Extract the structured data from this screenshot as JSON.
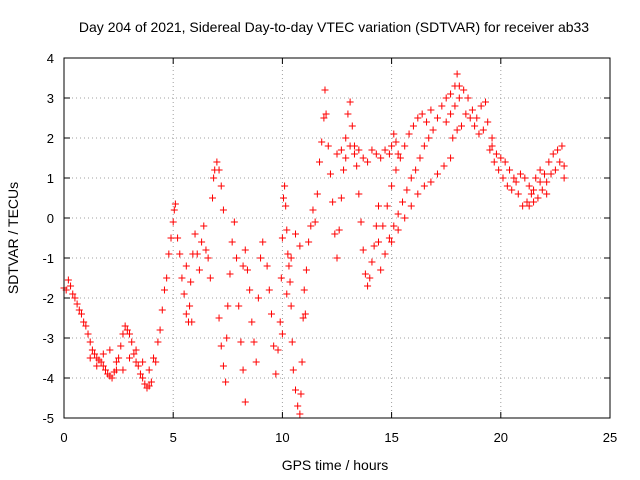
{
  "chart_data": {
    "type": "scatter",
    "title": "Day 204 of 2021, Sidereal Day-to-day VTEC variation (SDTVAR) for receiver ab33",
    "xlabel": "GPS time / hours",
    "ylabel": "SDTVAR / TECUs",
    "xlim": [
      0,
      25
    ],
    "ylim": [
      -5,
      4
    ],
    "xticks": [
      0,
      5,
      10,
      15,
      20,
      25
    ],
    "yticks": [
      -5,
      -4,
      -3,
      -2,
      -1,
      0,
      1,
      2,
      3,
      4
    ],
    "xtick_labels": [
      "0",
      "5",
      "10",
      "15",
      "20",
      "25"
    ],
    "ytick_labels": [
      "-5",
      "-4",
      "-3",
      "-2",
      "-1",
      "0",
      "1",
      "2",
      "3",
      "4"
    ],
    "grid": true,
    "marker": "plus",
    "color": "#ff0000",
    "series": [
      {
        "name": "SDTVAR",
        "points": [
          [
            0.0,
            -1.75
          ],
          [
            0.2,
            -1.55
          ],
          [
            0.4,
            -1.9
          ],
          [
            0.6,
            -2.15
          ],
          [
            0.8,
            -2.4
          ],
          [
            1.0,
            -2.7
          ],
          [
            1.2,
            -3.1
          ],
          [
            1.4,
            -3.4
          ],
          [
            1.6,
            -3.55
          ],
          [
            1.8,
            -3.7
          ],
          [
            2.0,
            -3.9
          ],
          [
            2.2,
            -4.0
          ],
          [
            2.4,
            -3.8
          ],
          [
            2.6,
            -3.2
          ],
          [
            2.8,
            -2.7
          ],
          [
            3.0,
            -2.9
          ],
          [
            3.2,
            -3.4
          ],
          [
            3.4,
            -3.7
          ],
          [
            3.6,
            -4.0
          ],
          [
            3.8,
            -4.25
          ],
          [
            4.0,
            -4.1
          ],
          [
            4.2,
            -3.6
          ],
          [
            4.4,
            -2.8
          ],
          [
            4.6,
            -1.8
          ],
          [
            4.8,
            -0.9
          ],
          [
            5.0,
            -0.1
          ],
          [
            5.1,
            0.35
          ],
          [
            5.2,
            -0.5
          ],
          [
            5.4,
            -1.5
          ],
          [
            5.6,
            -2.4
          ],
          [
            0.1,
            -1.8
          ],
          [
            0.3,
            -1.7
          ],
          [
            0.5,
            -2.0
          ],
          [
            0.7,
            -2.3
          ],
          [
            0.9,
            -2.6
          ],
          [
            1.1,
            -2.9
          ],
          [
            1.3,
            -3.3
          ],
          [
            1.5,
            -3.5
          ],
          [
            1.7,
            -3.6
          ],
          [
            1.9,
            -3.8
          ],
          [
            2.1,
            -3.95
          ],
          [
            2.3,
            -3.85
          ],
          [
            2.5,
            -3.5
          ],
          [
            2.7,
            -2.9
          ],
          [
            2.9,
            -2.8
          ],
          [
            3.1,
            -3.1
          ],
          [
            3.3,
            -3.6
          ],
          [
            3.5,
            -3.9
          ],
          [
            3.7,
            -4.15
          ],
          [
            3.9,
            -4.2
          ],
          [
            1.2,
            -3.5
          ],
          [
            1.5,
            -3.7
          ],
          [
            1.8,
            -3.4
          ],
          [
            2.1,
            -3.3
          ],
          [
            2.4,
            -3.6
          ],
          [
            2.7,
            -3.8
          ],
          [
            3.0,
            -3.5
          ],
          [
            3.3,
            -3.3
          ],
          [
            3.6,
            -3.6
          ],
          [
            3.9,
            -3.8
          ],
          [
            4.1,
            -3.5
          ],
          [
            4.3,
            -3.1
          ],
          [
            4.5,
            -2.3
          ],
          [
            4.7,
            -1.5
          ],
          [
            4.9,
            -0.5
          ],
          [
            5.05,
            0.2
          ],
          [
            5.3,
            -0.9
          ],
          [
            5.5,
            -1.9
          ],
          [
            5.7,
            -2.6
          ],
          [
            5.8,
            -1.6
          ],
          [
            5.9,
            -0.9
          ],
          [
            6.0,
            -0.4
          ],
          [
            6.1,
            -0.9
          ],
          [
            6.2,
            -1.3
          ],
          [
            6.3,
            -0.6
          ],
          [
            6.4,
            -0.2
          ],
          [
            6.5,
            -0.8
          ],
          [
            5.6,
            -1.2
          ],
          [
            5.75,
            -2.2
          ],
          [
            5.85,
            -2.6
          ],
          [
            6.6,
            -1.0
          ],
          [
            6.7,
            -1.5
          ],
          [
            6.8,
            0.5
          ],
          [
            6.85,
            1.0
          ],
          [
            6.9,
            1.2
          ],
          [
            7.0,
            1.4
          ],
          [
            7.1,
            1.2
          ],
          [
            7.2,
            0.8
          ],
          [
            7.3,
            0.2
          ],
          [
            7.1,
            -2.5
          ],
          [
            7.2,
            -3.2
          ],
          [
            7.3,
            -3.7
          ],
          [
            7.4,
            -4.1
          ],
          [
            7.45,
            -3.0
          ],
          [
            7.5,
            -2.2
          ],
          [
            7.6,
            -1.4
          ],
          [
            7.7,
            -0.6
          ],
          [
            7.8,
            -0.1
          ],
          [
            7.9,
            -1.0
          ],
          [
            8.0,
            -2.2
          ],
          [
            8.1,
            -3.1
          ],
          [
            8.2,
            -3.8
          ],
          [
            8.3,
            -4.6
          ],
          [
            8.2,
            -1.2
          ],
          [
            8.3,
            -0.8
          ],
          [
            8.4,
            -1.3
          ],
          [
            8.5,
            -1.8
          ],
          [
            8.6,
            -2.6
          ],
          [
            8.7,
            -3.1
          ],
          [
            8.8,
            -3.6
          ],
          [
            8.9,
            -2.0
          ],
          [
            9.0,
            -1.0
          ],
          [
            9.1,
            -0.6
          ],
          [
            9.3,
            -1.2
          ],
          [
            9.4,
            -1.8
          ],
          [
            9.5,
            -2.4
          ],
          [
            9.6,
            -3.2
          ],
          [
            9.7,
            -3.9
          ],
          [
            9.8,
            -3.3
          ],
          [
            9.9,
            -2.6
          ],
          [
            9.95,
            -1.5
          ],
          [
            10.0,
            -0.5
          ],
          [
            10.05,
            0.5
          ],
          [
            10.1,
            0.8
          ],
          [
            10.15,
            0.3
          ],
          [
            10.2,
            -0.3
          ],
          [
            10.25,
            -0.9
          ],
          [
            10.3,
            -1.2
          ],
          [
            10.35,
            -1.6
          ],
          [
            10.4,
            -2.2
          ],
          [
            10.45,
            -3.1
          ],
          [
            10.5,
            -3.8
          ],
          [
            10.6,
            -4.3
          ],
          [
            10.7,
            -4.7
          ],
          [
            10.8,
            -4.9
          ],
          [
            10.85,
            -4.4
          ],
          [
            10.9,
            -3.6
          ],
          [
            10.95,
            -2.5
          ],
          [
            11.0,
            -1.8
          ],
          [
            11.05,
            -2.4
          ],
          [
            10.0,
            -2.9
          ],
          [
            10.2,
            -1.9
          ],
          [
            10.4,
            -1.0
          ],
          [
            10.6,
            -0.4
          ],
          [
            10.8,
            -0.7
          ],
          [
            11.1,
            -1.3
          ],
          [
            11.2,
            -0.6
          ],
          [
            11.3,
            -0.2
          ],
          [
            11.4,
            0.2
          ],
          [
            11.5,
            -0.1
          ],
          [
            11.6,
            0.6
          ],
          [
            11.7,
            1.4
          ],
          [
            11.8,
            1.9
          ],
          [
            11.9,
            2.5
          ],
          [
            11.95,
            3.2
          ],
          [
            12.0,
            2.6
          ],
          [
            12.1,
            1.8
          ],
          [
            12.2,
            1.1
          ],
          [
            12.3,
            0.4
          ],
          [
            12.4,
            -0.4
          ],
          [
            12.5,
            -1.0
          ],
          [
            12.6,
            -0.3
          ],
          [
            12.7,
            0.5
          ],
          [
            12.8,
            1.2
          ],
          [
            12.9,
            2.0
          ],
          [
            13.0,
            2.6
          ],
          [
            13.1,
            2.9
          ],
          [
            13.2,
            2.3
          ],
          [
            13.3,
            1.8
          ],
          [
            13.4,
            1.3
          ],
          [
            13.5,
            0.6
          ],
          [
            13.6,
            -0.1
          ],
          [
            13.7,
            -0.8
          ],
          [
            13.8,
            -1.4
          ],
          [
            13.9,
            -1.7
          ],
          [
            14.0,
            -1.5
          ],
          [
            14.1,
            -1.1
          ],
          [
            14.2,
            -0.7
          ],
          [
            14.3,
            -0.2
          ],
          [
            14.4,
            0.3
          ],
          [
            12.5,
            1.6
          ],
          [
            12.7,
            1.7
          ],
          [
            12.9,
            1.5
          ],
          [
            13.1,
            1.8
          ],
          [
            13.3,
            1.6
          ],
          [
            13.5,
            1.7
          ],
          [
            13.7,
            1.5
          ],
          [
            13.9,
            1.4
          ],
          [
            14.1,
            1.7
          ],
          [
            14.3,
            1.6
          ],
          [
            14.5,
            1.5
          ],
          [
            14.7,
            1.7
          ],
          [
            14.9,
            1.6
          ],
          [
            15.0,
            1.8
          ],
          [
            15.1,
            2.1
          ],
          [
            15.2,
            1.9
          ],
          [
            15.3,
            1.6
          ],
          [
            14.4,
            -0.6
          ],
          [
            14.6,
            -0.2
          ],
          [
            14.8,
            0.3
          ],
          [
            15.0,
            0.8
          ],
          [
            15.2,
            1.2
          ],
          [
            15.4,
            1.5
          ],
          [
            15.6,
            1.8
          ],
          [
            15.8,
            2.1
          ],
          [
            16.0,
            2.3
          ],
          [
            16.2,
            2.5
          ],
          [
            16.4,
            2.6
          ],
          [
            16.6,
            2.4
          ],
          [
            16.8,
            2.7
          ],
          [
            14.5,
            -1.3
          ],
          [
            14.7,
            -0.9
          ],
          [
            14.9,
            -0.5
          ],
          [
            15.1,
            -0.2
          ],
          [
            15.3,
            0.1
          ],
          [
            15.5,
            0.4
          ],
          [
            15.7,
            0.7
          ],
          [
            15.9,
            1.0
          ],
          [
            16.1,
            1.2
          ],
          [
            16.3,
            1.5
          ],
          [
            16.5,
            1.8
          ],
          [
            16.7,
            2.0
          ],
          [
            16.9,
            2.2
          ],
          [
            17.1,
            2.5
          ],
          [
            17.3,
            2.8
          ],
          [
            17.5,
            3.0
          ],
          [
            17.7,
            3.1
          ],
          [
            17.9,
            3.3
          ],
          [
            18.0,
            3.6
          ],
          [
            18.1,
            3.3
          ],
          [
            15.0,
            -0.6
          ],
          [
            15.3,
            -0.3
          ],
          [
            15.6,
            0.0
          ],
          [
            15.9,
            0.3
          ],
          [
            16.2,
            0.6
          ],
          [
            16.5,
            0.8
          ],
          [
            16.8,
            0.9
          ],
          [
            17.1,
            1.1
          ],
          [
            17.4,
            1.3
          ],
          [
            17.7,
            1.5
          ],
          [
            17.5,
            2.4
          ],
          [
            17.7,
            2.6
          ],
          [
            17.9,
            2.8
          ],
          [
            18.1,
            3.0
          ],
          [
            18.3,
            3.2
          ],
          [
            18.5,
            3.0
          ],
          [
            18.7,
            2.7
          ],
          [
            18.9,
            2.5
          ],
          [
            19.1,
            2.8
          ],
          [
            19.3,
            2.9
          ],
          [
            17.8,
            2.0
          ],
          [
            18.0,
            2.2
          ],
          [
            18.2,
            2.3
          ],
          [
            18.4,
            2.6
          ],
          [
            18.6,
            2.5
          ],
          [
            18.8,
            2.3
          ],
          [
            19.0,
            2.1
          ],
          [
            19.2,
            2.2
          ],
          [
            19.4,
            2.4
          ],
          [
            19.6,
            2.0
          ],
          [
            19.5,
            1.7
          ],
          [
            19.7,
            1.4
          ],
          [
            19.9,
            1.2
          ],
          [
            20.1,
            1.0
          ],
          [
            20.3,
            0.8
          ],
          [
            20.5,
            0.7
          ],
          [
            20.7,
            0.9
          ],
          [
            20.9,
            1.1
          ],
          [
            21.1,
            1.0
          ],
          [
            21.3,
            0.8
          ],
          [
            19.6,
            1.8
          ],
          [
            19.8,
            1.6
          ],
          [
            20.0,
            1.5
          ],
          [
            20.2,
            1.4
          ],
          [
            20.4,
            1.2
          ],
          [
            20.6,
            1.0
          ],
          [
            20.8,
            0.6
          ],
          [
            21.0,
            0.3
          ],
          [
            21.2,
            0.4
          ],
          [
            21.4,
            0.6
          ],
          [
            21.5,
            0.7
          ],
          [
            21.7,
            0.5
          ],
          [
            21.9,
            0.7
          ],
          [
            22.1,
            0.9
          ],
          [
            22.3,
            1.1
          ],
          [
            22.5,
            1.2
          ],
          [
            22.7,
            1.4
          ],
          [
            22.9,
            1.3
          ],
          [
            22.0,
            1.1
          ],
          [
            22.2,
            1.4
          ],
          [
            21.6,
            1.0
          ],
          [
            21.8,
            1.2
          ],
          [
            22.4,
            1.6
          ],
          [
            22.6,
            1.7
          ],
          [
            22.8,
            1.8
          ],
          [
            22.9,
            1.0
          ],
          [
            21.3,
            0.3
          ],
          [
            21.5,
            0.4
          ],
          [
            21.8,
            0.9
          ],
          [
            22.1,
            0.6
          ]
        ]
      }
    ]
  }
}
